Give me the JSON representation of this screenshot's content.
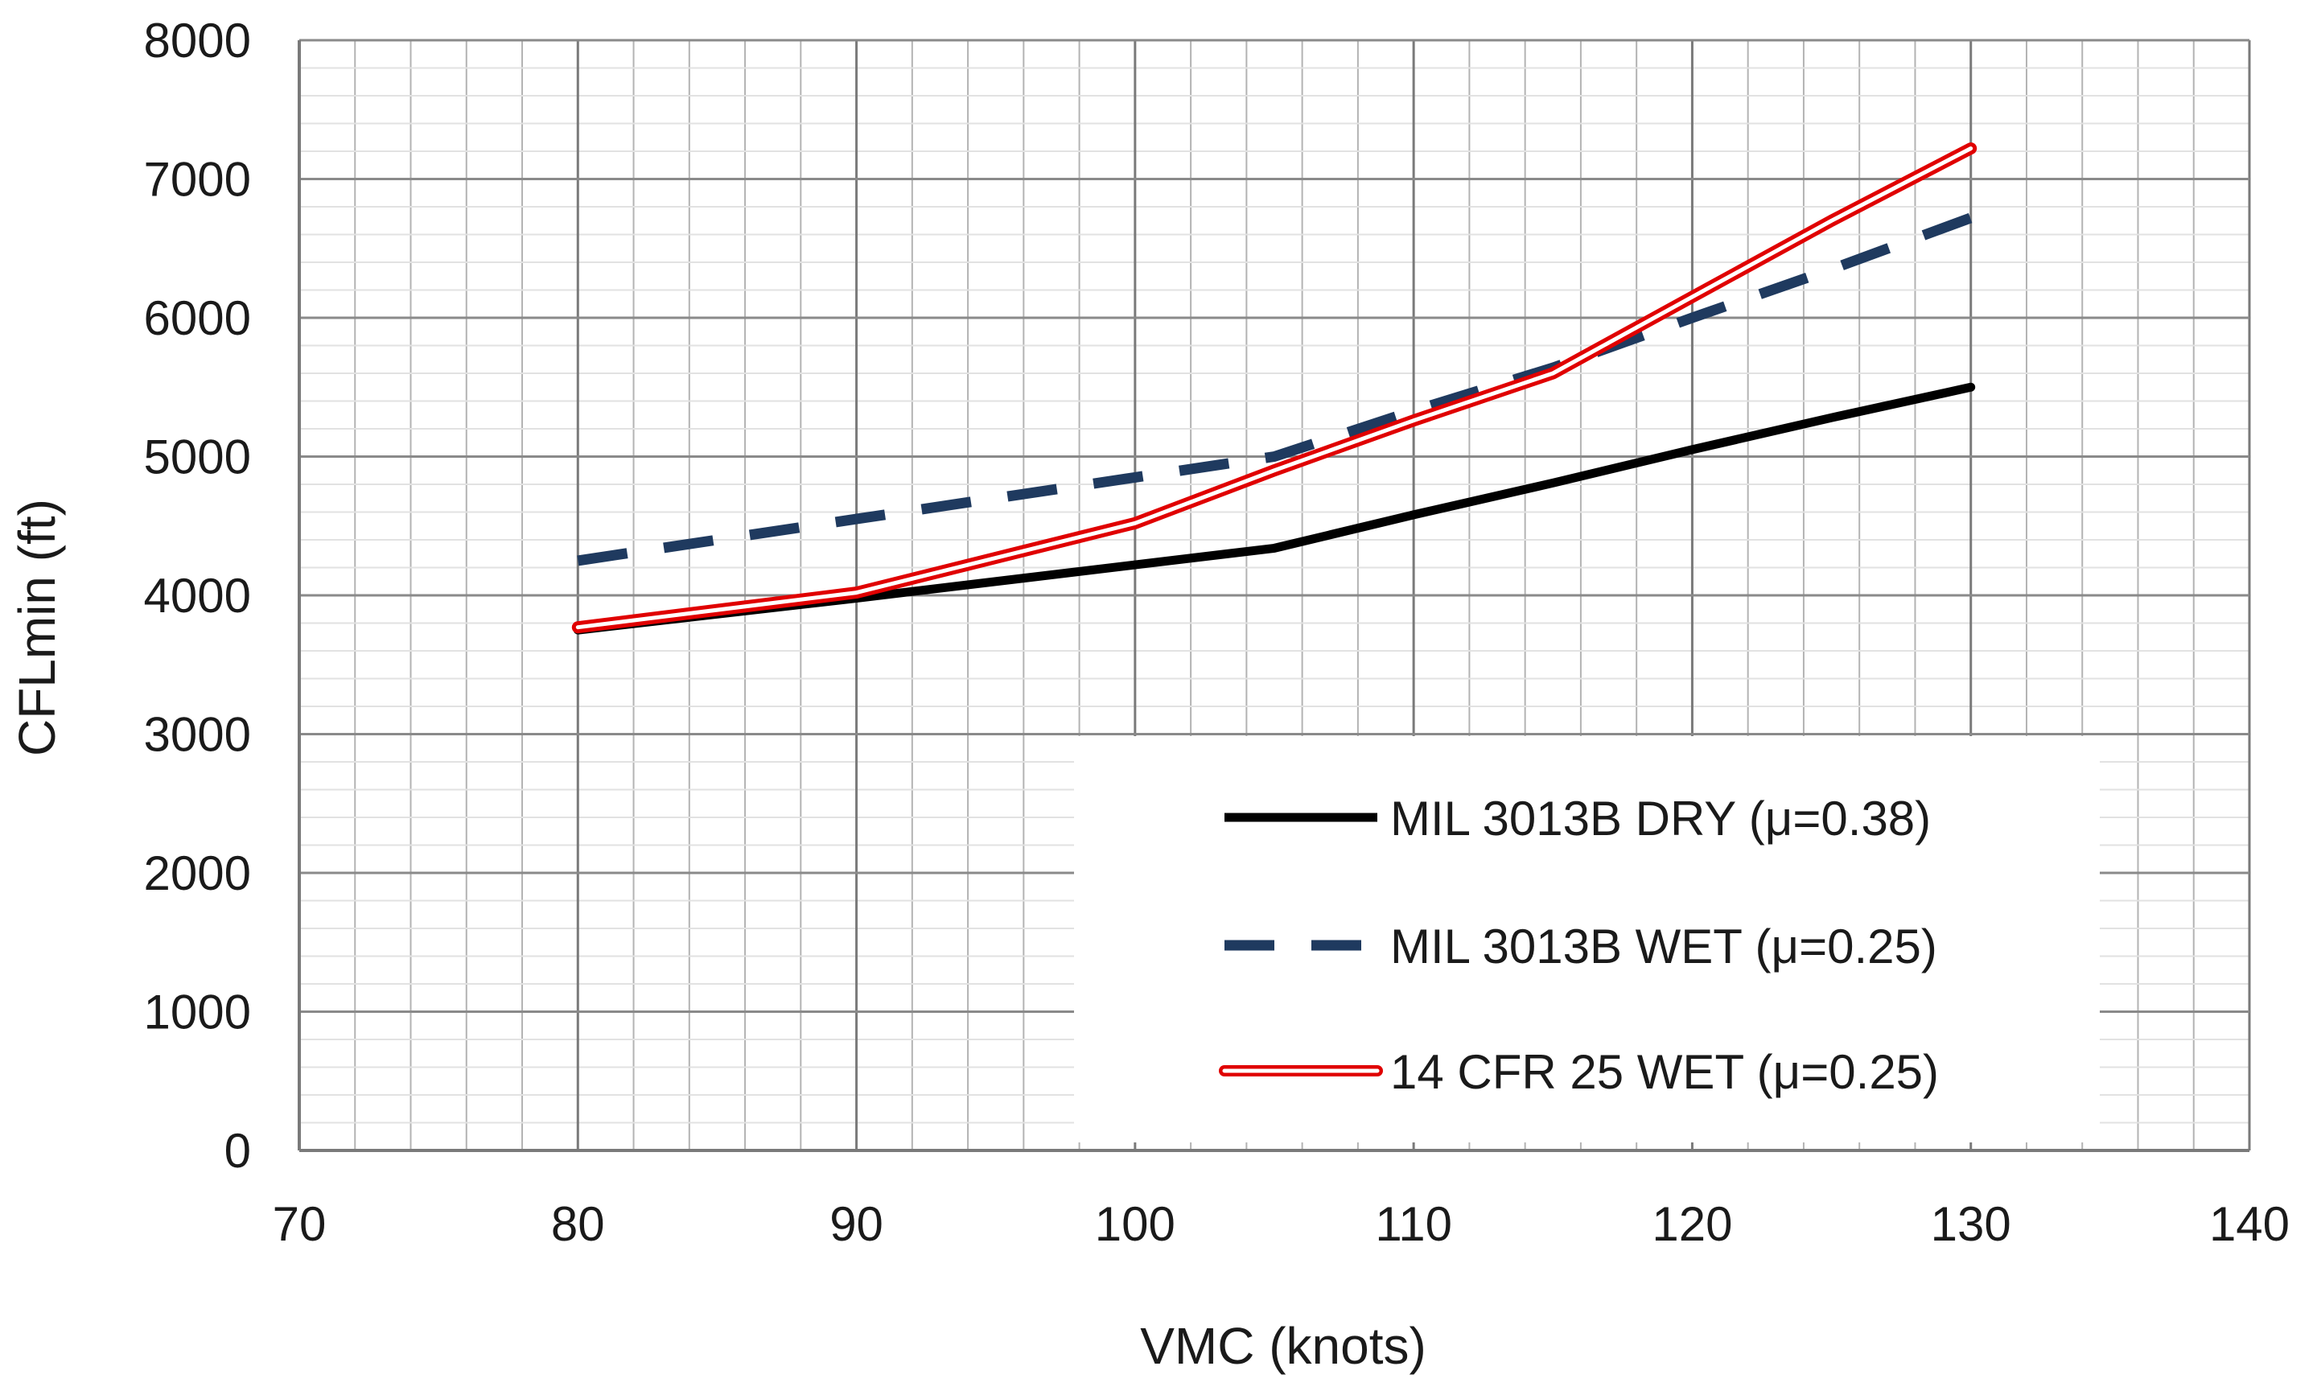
{
  "chart_data": {
    "type": "line",
    "title": "",
    "xlabel": "VMC (knots)",
    "ylabel": "CFLmin (ft)",
    "xlim": [
      70,
      140
    ],
    "ylim": [
      0,
      8000
    ],
    "xticks": [
      70,
      80,
      90,
      100,
      110,
      120,
      130,
      140
    ],
    "yticks": [
      0,
      1000,
      2000,
      3000,
      4000,
      5000,
      6000,
      7000,
      8000
    ],
    "xtick_labels": [
      "70",
      "80",
      "90",
      "100",
      "110",
      "120",
      "130",
      "140"
    ],
    "ytick_labels": [
      "0",
      "1000",
      "2000",
      "3000",
      "4000",
      "5000",
      "6000",
      "7000",
      "8000"
    ],
    "grid": true,
    "legend_position": "bottom-right",
    "series": [
      {
        "name": "MIL 3013B DRY (μ=0.38)",
        "style": "solid",
        "color": "#000000",
        "x": [
          80,
          90,
          100,
          105,
          110,
          115,
          120,
          125,
          130
        ],
        "y": [
          3750,
          3980,
          4220,
          4340,
          4580,
          4810,
          5050,
          5280,
          5500
        ]
      },
      {
        "name": "MIL 3013B WET (μ=0.25)",
        "style": "dashed",
        "color": "#1f3a5f",
        "x": [
          80,
          90,
          100,
          105,
          110,
          115,
          120,
          125,
          130
        ],
        "y": [
          4250,
          4550,
          4850,
          5000,
          5330,
          5640,
          6000,
          6350,
          6720
        ]
      },
      {
        "name": "14 CFR 25 WET (μ=0.25)",
        "style": "double",
        "color": "#e00000",
        "x": [
          80,
          90,
          100,
          105,
          110,
          115,
          120,
          125,
          130
        ],
        "y": [
          3770,
          4020,
          4520,
          4900,
          5260,
          5600,
          6150,
          6700,
          7220
        ]
      }
    ]
  }
}
